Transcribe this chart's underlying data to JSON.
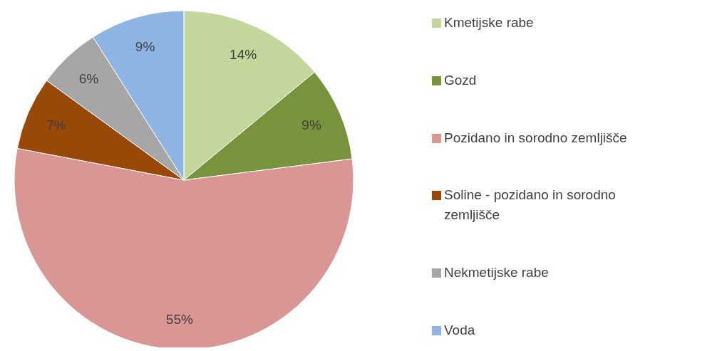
{
  "chart_data": {
    "type": "pie",
    "categories": [
      "Kmetijske rabe",
      "Gozd",
      "Pozidano in sorodno zemljišče",
      "Soline - pozidano in sorodno zemljišče",
      "Nekmetijske rabe",
      "Voda"
    ],
    "values": [
      14,
      9,
      55,
      7,
      6,
      9
    ],
    "value_labels": [
      "14%",
      "9%",
      "55%",
      "7%",
      "6%",
      "9%"
    ],
    "colors": [
      "#c3d69b",
      "#77933c",
      "#d99694",
      "#984807",
      "#a6a6a6",
      "#8eb4e3"
    ],
    "legend": "right"
  }
}
